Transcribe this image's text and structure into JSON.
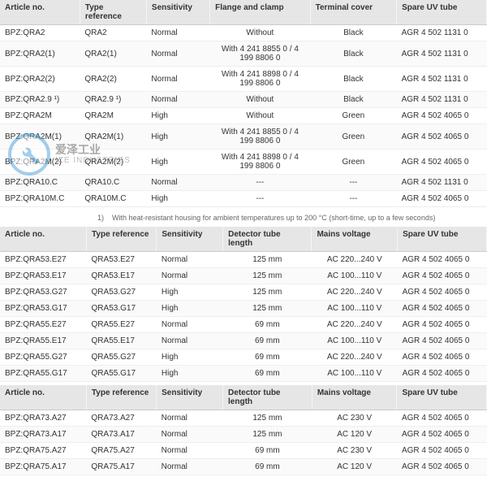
{
  "watermark": {
    "cn": "爱泽工业",
    "en": "IZE INDUSTRIES"
  },
  "footnote": {
    "marker": "1)",
    "text": "With heat-resistant housing for ambient temperatures up to 200 °C (short-time, up to a few seconds)"
  },
  "t1": {
    "cols": [
      "Article no.",
      "Type reference",
      "Sensitivity",
      "Flange and clamp",
      "Terminal cover",
      "Spare UV tube"
    ],
    "widths": [
      "90px",
      "75px",
      "70px",
      "135px",
      "110px",
      "120px"
    ],
    "rows": [
      [
        "BPZ:QRA2",
        "QRA2",
        "Normal",
        "Without",
        "Black",
        "AGR 4 502 1131 0"
      ],
      [
        "BPZ:QRA2(1)",
        "QRA2(1)",
        "Normal",
        "With 4 241 8855 0 / 4 199 8806 0",
        "Black",
        "AGR 4 502 1131 0"
      ],
      [
        "BPZ:QRA2(2)",
        "QRA2(2)",
        "Normal",
        "With 4 241 8898 0 / 4 199 8806 0",
        "Black",
        "AGR 4 502 1131 0"
      ],
      [
        "BPZ:QRA2.9 ¹)",
        "QRA2.9 ¹)",
        "Normal",
        "Without",
        "Black",
        "AGR 4 502 1131 0"
      ],
      [
        "BPZ:QRA2M",
        "QRA2M",
        "High",
        "Without",
        "Green",
        "AGR 4 502 4065 0"
      ],
      [
        "BPZ:QRA2M(1)",
        "QRA2M(1)",
        "High",
        "With 4 241 8855 0 / 4 199 8806 0",
        "Green",
        "AGR 4 502 4065 0"
      ],
      [
        "BPZ:QRA2M(2)",
        "QRA2M(2)",
        "High",
        "With 4 241 8898 0 / 4 199 8806 0",
        "Green",
        "AGR 4 502 4065 0"
      ],
      [
        "BPZ:QRA10.C",
        "QRA10.C",
        "Normal",
        "---",
        "---",
        "AGR 4 502 1131 0"
      ],
      [
        "BPZ:QRA10M.C",
        "QRA10M.C",
        "High",
        "---",
        "---",
        "AGR 4 502 4065 0"
      ]
    ]
  },
  "t2": {
    "cols": [
      "Article no.",
      "Type reference",
      "Sensitivity",
      "Detector tube length",
      "Mains voltage",
      "Spare UV tube"
    ],
    "widths": [
      "100px",
      "80px",
      "75px",
      "115px",
      "110px",
      "120px"
    ],
    "rows": [
      [
        "BPZ:QRA53.E27",
        "QRA53.E27",
        "Normal",
        "125 mm",
        "AC 220...240 V",
        "AGR 4 502 4065 0"
      ],
      [
        "BPZ:QRA53.E17",
        "QRA53.E17",
        "Normal",
        "125 mm",
        "AC 100...110 V",
        "AGR 4 502 4065 0"
      ],
      [
        "BPZ:QRA53.G27",
        "QRA53.G27",
        "High",
        "125 mm",
        "AC 220...240 V",
        "AGR 4 502 4065 0"
      ],
      [
        "BPZ:QRA53.G17",
        "QRA53.G17",
        "High",
        "125 mm",
        "AC 100...110 V",
        "AGR 4 502 4065 0"
      ],
      [
        "BPZ:QRA55.E27",
        "QRA55.E27",
        "Normal",
        "69 mm",
        "AC 220...240 V",
        "AGR 4 502 4065 0"
      ],
      [
        "BPZ:QRA55.E17",
        "QRA55.E17",
        "Normal",
        "69 mm",
        "AC 100...110 V",
        "AGR 4 502 4065 0"
      ],
      [
        "BPZ:QRA55.G27",
        "QRA55.G27",
        "High",
        "69 mm",
        "AC 220...240 V",
        "AGR 4 502 4065 0"
      ],
      [
        "BPZ:QRA55.G17",
        "QRA55.G17",
        "High",
        "69 mm",
        "AC 100...110 V",
        "AGR 4 502 4065 0"
      ]
    ]
  },
  "t3": {
    "cols": [
      "Article no.",
      "Type reference",
      "Sensitivity",
      "Detector tube length",
      "Mains voltage",
      "Spare UV tube"
    ],
    "widths": [
      "100px",
      "80px",
      "75px",
      "115px",
      "110px",
      "120px"
    ],
    "rows": [
      [
        "BPZ:QRA73.A27",
        "QRA73.A27",
        "Normal",
        "125 mm",
        "AC 230 V",
        "AGR 4 502 4065 0"
      ],
      [
        "BPZ:QRA73.A17",
        "QRA73.A17",
        "Normal",
        "125 mm",
        "AC 120 V",
        "AGR 4 502 4065 0"
      ],
      [
        "BPZ:QRA75.A27",
        "QRA75.A27",
        "Normal",
        "69 mm",
        "AC 230 V",
        "AGR 4 502 4065 0"
      ],
      [
        "BPZ:QRA75.A17",
        "QRA75.A17",
        "Normal",
        "69 mm",
        "AC 120 V",
        "AGR 4 502 4065 0"
      ]
    ]
  },
  "centerCols": {
    "t1": [
      3,
      4
    ],
    "t2": [
      3,
      4
    ],
    "t3": [
      3,
      4
    ]
  }
}
